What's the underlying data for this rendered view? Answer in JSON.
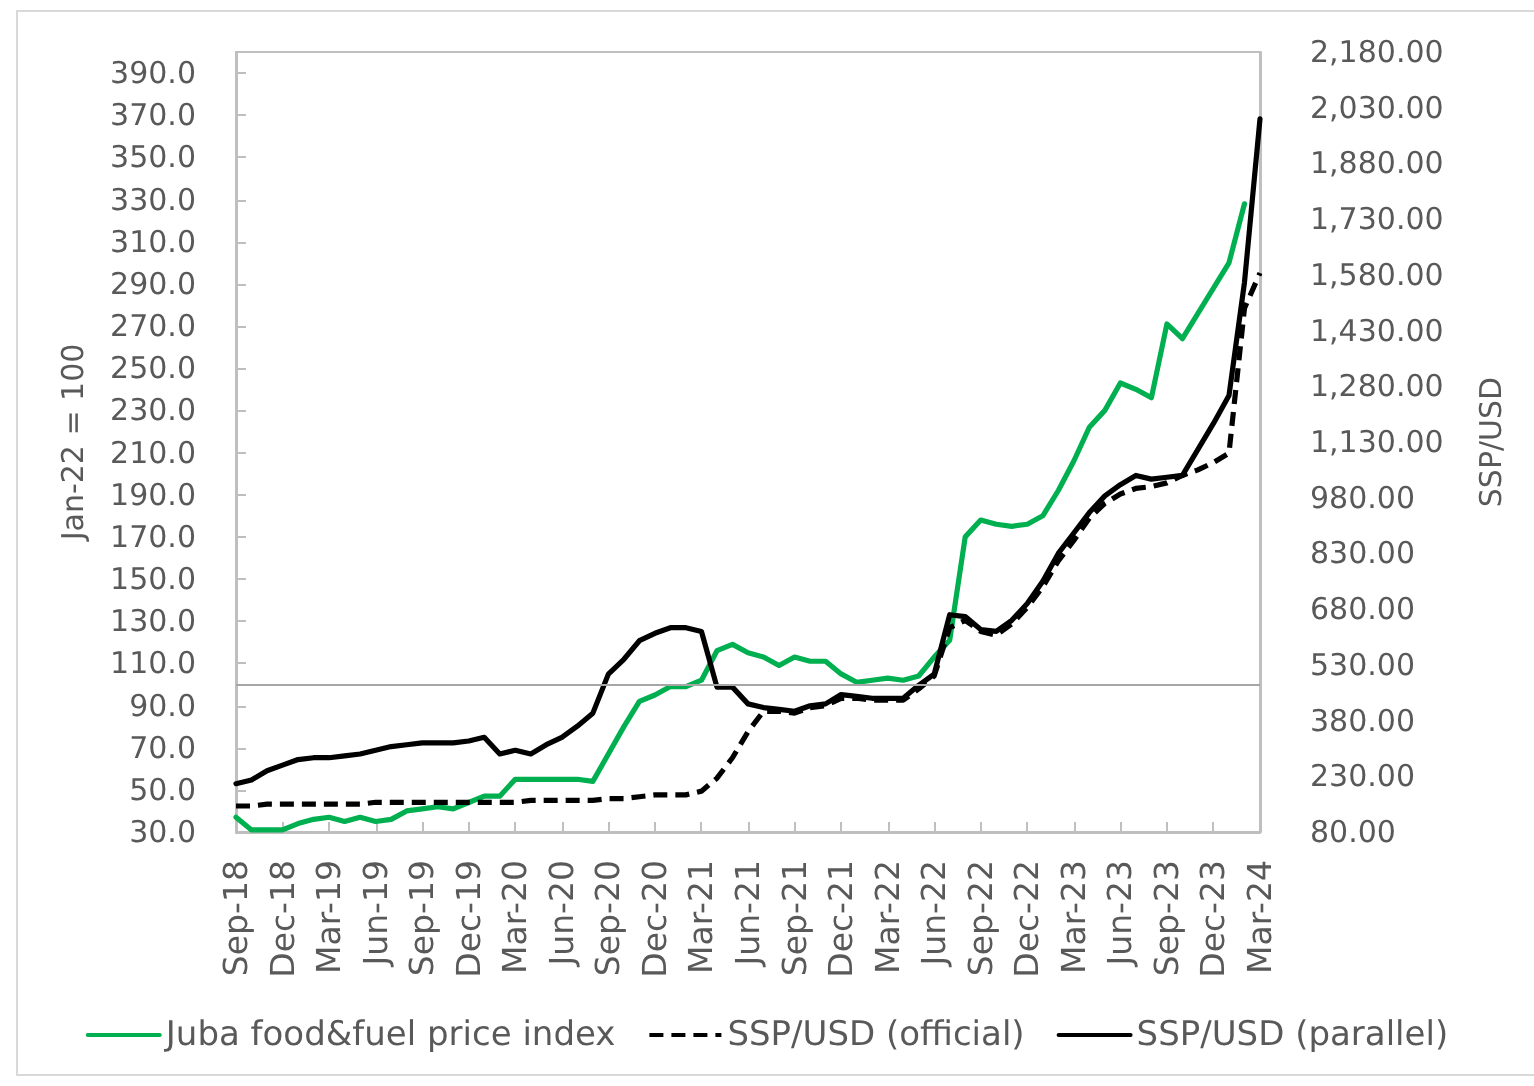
{
  "chart_data": {
    "type": "line",
    "categories": [
      "Sep-18",
      null,
      null,
      "Dec-18",
      null,
      null,
      "Mar-19",
      null,
      null,
      "Jun-19",
      null,
      null,
      "Sep-19",
      null,
      null,
      "Dec-19",
      null,
      null,
      "Mar-20",
      null,
      null,
      "Jun-20",
      null,
      null,
      "Sep-20",
      null,
      null,
      "Dec-20",
      null,
      null,
      "Mar-21",
      null,
      null,
      "Jun-21",
      null,
      null,
      "Sep-21",
      null,
      null,
      "Dec-21",
      null,
      null,
      "Mar-22",
      null,
      null,
      "Jun-22",
      null,
      null,
      "Sep-22",
      null,
      null,
      "Dec-22",
      null,
      null,
      "Mar-23",
      null,
      null,
      "Jun-23",
      null,
      null,
      "Sep-23",
      null,
      null,
      "Dec-23",
      null,
      null,
      "Mar-24"
    ],
    "series": [
      {
        "name": "Juba food&fuel price index",
        "color": "#00b050",
        "line_style": "solid",
        "axis": "y",
        "values": [
          37,
          31,
          31,
          31,
          34,
          36,
          37,
          35,
          37,
          35,
          36,
          40,
          41,
          42,
          41,
          44,
          47,
          47,
          55,
          55,
          55,
          55,
          55,
          54,
          67,
          80,
          92,
          95,
          99,
          99,
          102,
          116,
          119,
          115,
          113,
          109,
          113,
          111,
          111,
          105,
          101,
          102,
          103,
          102,
          104,
          113,
          121,
          170,
          178,
          176,
          175,
          176,
          180,
          192,
          206,
          222,
          230,
          243,
          240,
          236,
          271,
          264,
          276,
          288,
          300,
          328,
          null
        ]
      },
      {
        "name": "SSP/USD (official)",
        "color": "#000000",
        "line_style": "dashed",
        "axis": "y2",
        "values": [
          150,
          150,
          155,
          155,
          155,
          155,
          155,
          155,
          155,
          160,
          160,
          160,
          160,
          160,
          160,
          160,
          160,
          160,
          160,
          165,
          165,
          165,
          165,
          165,
          170,
          170,
          175,
          180,
          180,
          180,
          190,
          225,
          280,
          350,
          405,
          405,
          400,
          415,
          420,
          440,
          440,
          435,
          435,
          435,
          465,
          500,
          630,
          650,
          620,
          610,
          640,
          685,
          740,
          810,
          865,
          925,
          965,
          990,
          1005,
          1010,
          1020,
          1040,
          1055,
          1075,
          1100,
          1490,
          1585
        ]
      },
      {
        "name": "SSP/USD (parallel)",
        "color": "#000000",
        "line_style": "solid",
        "axis": "y2",
        "values": [
          210,
          220,
          245,
          260,
          275,
          280,
          280,
          285,
          290,
          300,
          310,
          315,
          320,
          320,
          320,
          325,
          335,
          290,
          300,
          290,
          315,
          335,
          365,
          400,
          505,
          545,
          595,
          615,
          630,
          630,
          620,
          470,
          470,
          425,
          415,
          410,
          405,
          420,
          425,
          450,
          445,
          440,
          440,
          440,
          475,
          505,
          665,
          660,
          625,
          620,
          650,
          695,
          755,
          830,
          885,
          940,
          985,
          1015,
          1040,
          1030,
          1035,
          1040,
          1110,
          1180,
          1255,
          1560,
          2000
        ]
      }
    ],
    "ylabel": "Jan-22 = 100",
    "y2label": "SSP/USD",
    "ylim": [
      30,
      400
    ],
    "yticks": [
      {
        "value": 30,
        "label": "30.0"
      },
      {
        "value": 50,
        "label": "50.0"
      },
      {
        "value": 70,
        "label": "70.0"
      },
      {
        "value": 90,
        "label": "90.0"
      },
      {
        "value": 110,
        "label": "110.0"
      },
      {
        "value": 130,
        "label": "130.0"
      },
      {
        "value": 150,
        "label": "150.0"
      },
      {
        "value": 170,
        "label": "170.0"
      },
      {
        "value": 190,
        "label": "190.0"
      },
      {
        "value": 210,
        "label": "210.0"
      },
      {
        "value": 230,
        "label": "230.0"
      },
      {
        "value": 250,
        "label": "250.0"
      },
      {
        "value": 270,
        "label": "270.0"
      },
      {
        "value": 290,
        "label": "290.0"
      },
      {
        "value": 310,
        "label": "310.0"
      },
      {
        "value": 330,
        "label": "330.0"
      },
      {
        "value": 350,
        "label": "350.0"
      },
      {
        "value": 370,
        "label": "370.0"
      },
      {
        "value": 390,
        "label": "390.0"
      }
    ],
    "y2lim": [
      80,
      2180
    ],
    "y2ticks": [
      {
        "value": 80,
        "label": "80.00"
      },
      {
        "value": 230,
        "label": "230.00"
      },
      {
        "value": 380,
        "label": "380.00"
      },
      {
        "value": 530,
        "label": "530.00"
      },
      {
        "value": 680,
        "label": "680.00"
      },
      {
        "value": 830,
        "label": "830.00"
      },
      {
        "value": 980,
        "label": "980.00"
      },
      {
        "value": 1130,
        "label": "1,130.00"
      },
      {
        "value": 1280,
        "label": "1,280.00"
      },
      {
        "value": 1430,
        "label": "1,430.00"
      },
      {
        "value": 1580,
        "label": "1,580.00"
      },
      {
        "value": 1730,
        "label": "1,730.00"
      },
      {
        "value": 1880,
        "label": "1,880.00"
      },
      {
        "value": 2030,
        "label": "2,030.00"
      },
      {
        "value": 2180,
        "label": "2,180.00"
      }
    ],
    "ref_lines": [
      {
        "axis": "y",
        "value": 100,
        "color": "#a6a6a6"
      }
    ],
    "marker": "none",
    "legend": "bottom"
  }
}
